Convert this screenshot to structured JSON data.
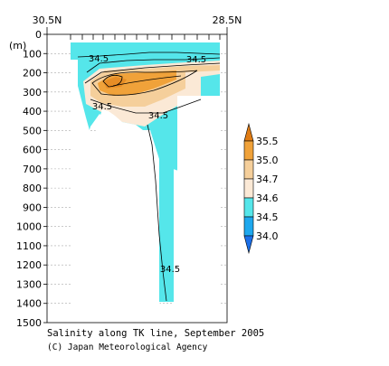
{
  "chart_data": {
    "type": "heatmap",
    "title": "Salinity along TK line, September 2005",
    "credit": "(C) Japan Meteorological Agency",
    "x_labels": {
      "left": "30.5N",
      "right": "28.5N"
    },
    "y_unit": "(m)",
    "ylim": [
      1500,
      0
    ],
    "y_ticks": [
      0,
      100,
      200,
      300,
      400,
      500,
      600,
      700,
      800,
      900,
      1000,
      1100,
      1200,
      1300,
      1400,
      1500
    ],
    "grid": true,
    "contour_labels": [
      "34.5",
      "34.5",
      "34.5",
      "34.5",
      "34.5"
    ],
    "colorbar": {
      "labels": [
        "35.5",
        "35.0",
        "34.7",
        "34.6",
        "34.5",
        "34.0"
      ],
      "colors": [
        "#e07c14",
        "#f0a23a",
        "#f5cf9b",
        "#fbe9d6",
        "#55e6ea",
        "#1ea8ee",
        "#1b6fe8"
      ]
    }
  }
}
